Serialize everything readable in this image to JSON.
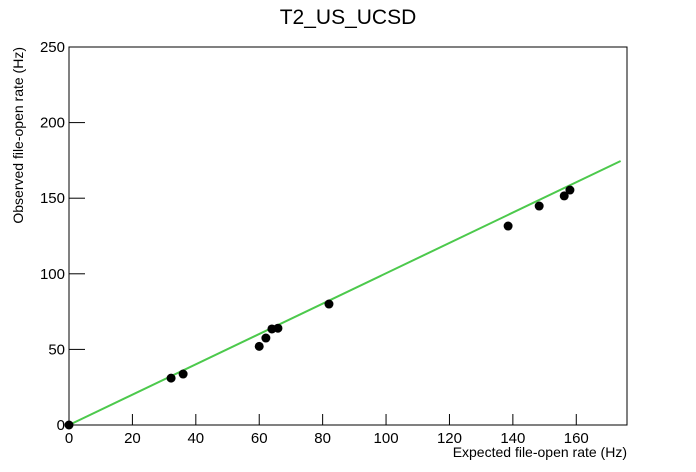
{
  "chart_data": {
    "type": "scatter",
    "title": "T2_US_UCSD",
    "xlabel": "Expected file-open rate (Hz)",
    "ylabel": "Observed file-open rate (Hz)",
    "xlim": [
      0,
      176
    ],
    "ylim": [
      0,
      250
    ],
    "xticks": [
      0,
      20,
      40,
      60,
      80,
      100,
      120,
      140,
      160
    ],
    "yticks": [
      0,
      50,
      100,
      150,
      200,
      250
    ],
    "series": [
      {
        "color": "#000000",
        "x": [
          0,
          32.2,
          36,
          60,
          62.1,
          64,
          65.9,
          82,
          138.5,
          148.3,
          156.2,
          158
        ],
        "values": [
          0,
          31,
          33.7,
          52,
          57.5,
          63.5,
          64,
          80,
          131.6,
          144.8,
          151.5,
          155.4
        ]
      }
    ],
    "fit": {
      "color": "#4cc94c",
      "x": [
        0,
        174
      ],
      "values": [
        0,
        174.6
      ]
    }
  }
}
